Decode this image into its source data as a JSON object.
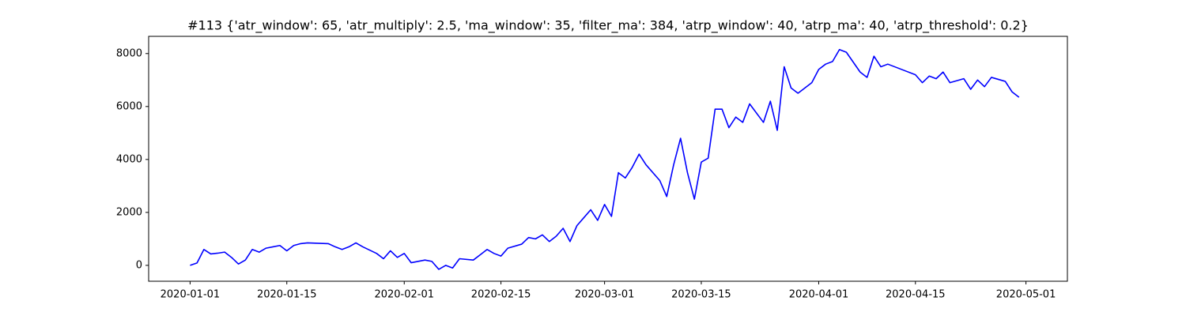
{
  "chart_data": {
    "type": "line",
    "title": "#113 {'atr_window': 65, 'atr_multiply': 2.5, 'ma_window': 35, 'filter_ma': 384, 'atrp_window': 40, 'atrp_ma': 40, 'atrp_threshold': 0.2}",
    "x": [
      "2020-01-01",
      "2020-01-02",
      "2020-01-03",
      "2020-01-04",
      "2020-01-05",
      "2020-01-06",
      "2020-01-07",
      "2020-01-08",
      "2020-01-09",
      "2020-01-10",
      "2020-01-11",
      "2020-01-12",
      "2020-01-13",
      "2020-01-14",
      "2020-01-15",
      "2020-01-16",
      "2020-01-17",
      "2020-01-18",
      "2020-01-21",
      "2020-01-22",
      "2020-01-23",
      "2020-01-24",
      "2020-01-25",
      "2020-01-26",
      "2020-01-28",
      "2020-01-29",
      "2020-01-30",
      "2020-01-31",
      "2020-02-01",
      "2020-02-02",
      "2020-02-04",
      "2020-02-05",
      "2020-02-06",
      "2020-02-07",
      "2020-02-08",
      "2020-02-09",
      "2020-02-11",
      "2020-02-12",
      "2020-02-13",
      "2020-02-14",
      "2020-02-15",
      "2020-02-16",
      "2020-02-18",
      "2020-02-19",
      "2020-02-20",
      "2020-02-21",
      "2020-02-22",
      "2020-02-23",
      "2020-02-24",
      "2020-02-25",
      "2020-02-26",
      "2020-02-27",
      "2020-02-28",
      "2020-02-29",
      "2020-03-01",
      "2020-03-02",
      "2020-03-03",
      "2020-03-04",
      "2020-03-05",
      "2020-03-06",
      "2020-03-07",
      "2020-03-09",
      "2020-03-10",
      "2020-03-11",
      "2020-03-12",
      "2020-03-13",
      "2020-03-14",
      "2020-03-15",
      "2020-03-16",
      "2020-03-17",
      "2020-03-18",
      "2020-03-19",
      "2020-03-20",
      "2020-03-21",
      "2020-03-22",
      "2020-03-24",
      "2020-03-25",
      "2020-03-26",
      "2020-03-27",
      "2020-03-28",
      "2020-03-29",
      "2020-03-31",
      "2020-04-01",
      "2020-04-02",
      "2020-04-03",
      "2020-04-04",
      "2020-04-05",
      "2020-04-07",
      "2020-04-08",
      "2020-04-09",
      "2020-04-10",
      "2020-04-11",
      "2020-04-15",
      "2020-04-16",
      "2020-04-17",
      "2020-04-18",
      "2020-04-19",
      "2020-04-20",
      "2020-04-22",
      "2020-04-23",
      "2020-04-24",
      "2020-04-25",
      "2020-04-26",
      "2020-04-28",
      "2020-04-29",
      "2020-04-30"
    ],
    "values": [
      0,
      90,
      600,
      430,
      460,
      500,
      300,
      50,
      200,
      600,
      500,
      650,
      700,
      750,
      550,
      750,
      820,
      850,
      820,
      700,
      600,
      700,
      850,
      700,
      450,
      250,
      550,
      300,
      450,
      100,
      200,
      150,
      -150,
      0,
      -100,
      250,
      200,
      400,
      600,
      450,
      350,
      650,
      800,
      1050,
      1000,
      1150,
      900,
      1100,
      1400,
      900,
      1500,
      1800,
      2100,
      1700,
      2300,
      1850,
      3500,
      3300,
      3700,
      4200,
      3800,
      3200,
      2600,
      3800,
      4800,
      3500,
      2500,
      3900,
      4050,
      5900,
      5900,
      5200,
      5600,
      5400,
      6100,
      5400,
      6200,
      5100,
      7500,
      6700,
      6500,
      6900,
      7400,
      7600,
      7700,
      8150,
      8050,
      7300,
      7100,
      7900,
      7500,
      7600,
      7200,
      6900,
      7150,
      7050,
      7300,
      6900,
      7050,
      6650,
      7000,
      6750,
      7100,
      6950,
      6550,
      6350
    ],
    "color": "#0000ff",
    "xlim": [
      "2019-12-26",
      "2020-05-07"
    ],
    "xticks": [
      "2020-01-01",
      "2020-01-15",
      "2020-02-01",
      "2020-02-15",
      "2020-03-01",
      "2020-03-15",
      "2020-04-01",
      "2020-04-15",
      "2020-05-01"
    ],
    "ylim": [
      -600,
      8650
    ],
    "yticks": [
      0,
      2000,
      4000,
      6000,
      8000
    ],
    "grid": false
  }
}
